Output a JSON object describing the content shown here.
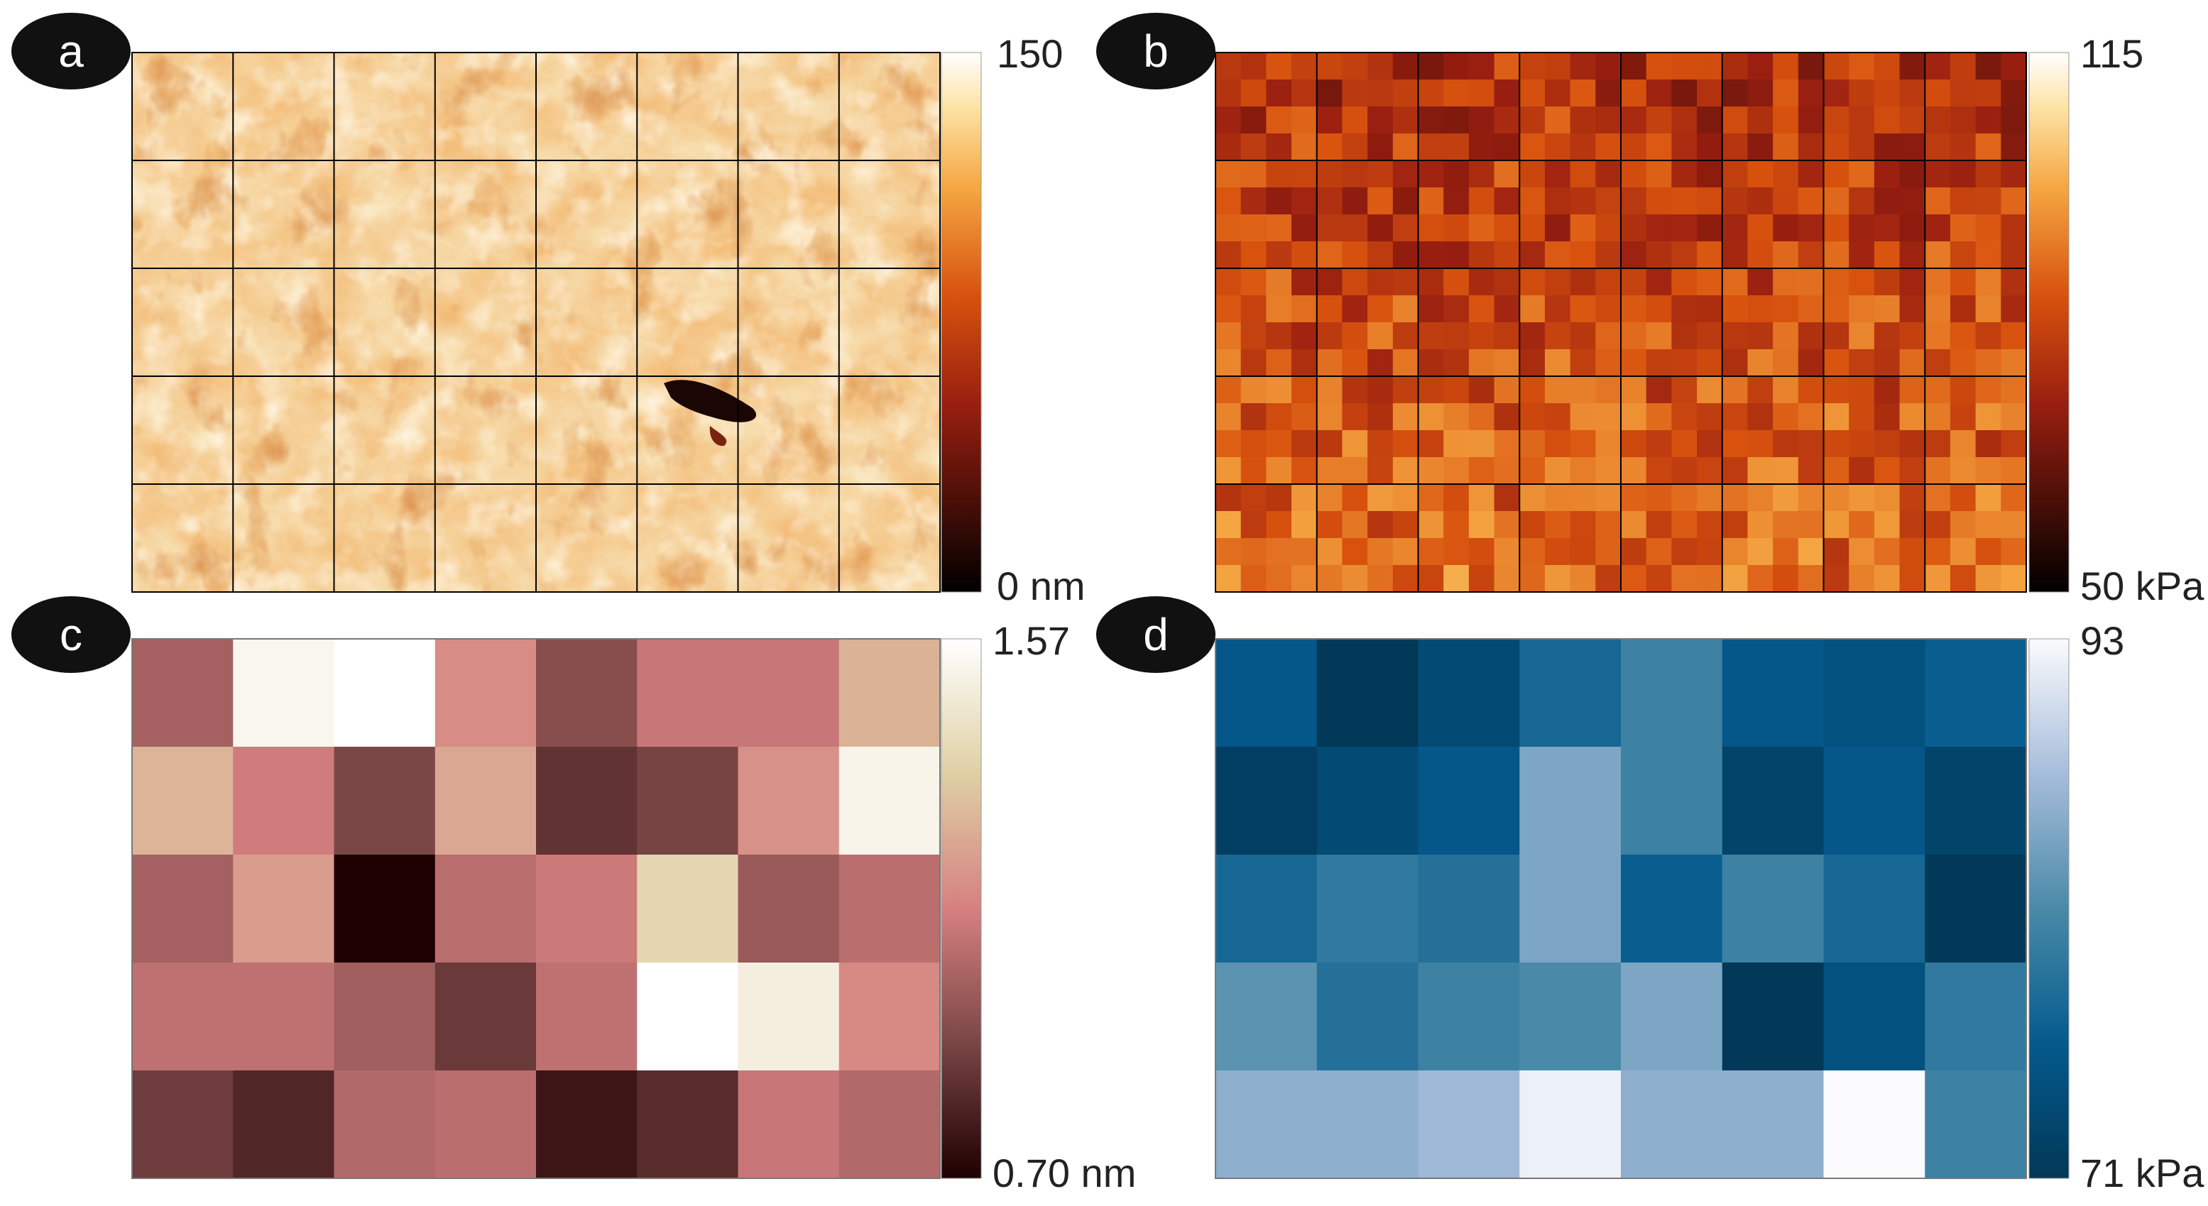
{
  "chart_data": [
    {
      "panel": "a",
      "type": "heatmap",
      "colormap": "afmhot",
      "grid": "8x5 black grid lines",
      "colorbar": {
        "max_label": "150",
        "min_label": "0 nm",
        "range": [
          0,
          150
        ],
        "unit": "nm"
      }
    },
    {
      "panel": "b",
      "type": "heatmap",
      "colormap": "afmhot",
      "rows": 20,
      "cols": 32,
      "colorbar": {
        "max_label": "115",
        "min_label": "50 kPa",
        "range": [
          50,
          115
        ],
        "unit": "kPa"
      }
    },
    {
      "panel": "c",
      "type": "heatmap",
      "colormap": "pink",
      "rows": 5,
      "cols": 8,
      "colorbar": {
        "max_label": "1.57",
        "min_label": "0.70 nm",
        "range": [
          0.7,
          1.57
        ],
        "unit": "nm"
      },
      "values": [
        [
          1.02,
          1.53,
          1.57,
          1.17,
          0.95,
          1.1,
          1.1,
          1.27
        ],
        [
          1.28,
          1.12,
          0.92,
          1.24,
          0.86,
          0.91,
          1.18,
          1.52
        ],
        [
          1.02,
          1.21,
          0.7,
          1.07,
          1.11,
          1.38,
          0.99,
          1.07
        ],
        [
          1.08,
          1.08,
          1.01,
          0.88,
          1.08,
          1.57,
          1.49,
          1.16
        ],
        [
          0.89,
          0.82,
          1.05,
          1.07,
          0.77,
          0.84,
          1.1,
          1.05
        ]
      ]
    },
    {
      "panel": "d",
      "type": "heatmap",
      "colormap": "PuBu_r",
      "rows": 5,
      "cols": 8,
      "colorbar": {
        "max_label": "93",
        "min_label": "71 kPa",
        "range": [
          71,
          93
        ],
        "unit": "kPa"
      },
      "values": [
        [
          76,
          71,
          74,
          78,
          81,
          76,
          75,
          77
        ],
        [
          72,
          74,
          76,
          85,
          81,
          73,
          76,
          73
        ],
        [
          78,
          80,
          79,
          85,
          77,
          81,
          78,
          71
        ],
        [
          83,
          79,
          81,
          82,
          85,
          71,
          75,
          80
        ],
        [
          86,
          86,
          87,
          92,
          86,
          86,
          93,
          81
        ]
      ]
    }
  ],
  "panel_badges": [
    "a",
    "b",
    "c",
    "d"
  ],
  "colors": {
    "badge_bg": "#111111",
    "grid_line": "#000000"
  }
}
